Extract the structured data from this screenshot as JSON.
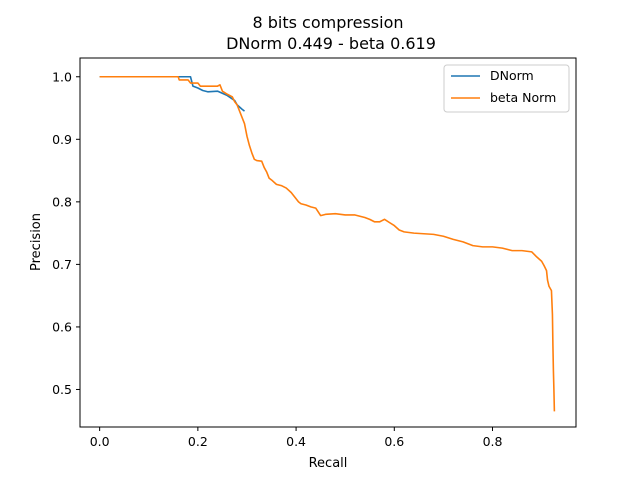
{
  "chart_data": {
    "type": "line",
    "title": "8 bits compression",
    "subtitle": "DNorm 0.449 - beta 0.619",
    "xlabel": "Recall",
    "ylabel": "Precision",
    "xlim": [
      -0.04,
      0.97
    ],
    "ylim": [
      0.44,
      1.03
    ],
    "xticks": [
      0.0,
      0.2,
      0.4,
      0.6,
      0.8
    ],
    "xtick_labels": [
      "0.0",
      "0.2",
      "0.4",
      "0.6",
      "0.8"
    ],
    "yticks": [
      0.5,
      0.6,
      0.7,
      0.8,
      0.9,
      1.0
    ],
    "ytick_labels": [
      "0.5",
      "0.6",
      "0.7",
      "0.8",
      "0.9",
      "1.0"
    ],
    "grid": false,
    "legend_position": "top-right",
    "series": [
      {
        "name": "DNorm",
        "color": "#1f77b4",
        "points": [
          [
            0.0,
            1.0
          ],
          [
            0.185,
            1.0
          ],
          [
            0.19,
            0.985
          ],
          [
            0.2,
            0.982
          ],
          [
            0.21,
            0.978
          ],
          [
            0.22,
            0.976
          ],
          [
            0.24,
            0.977
          ],
          [
            0.26,
            0.97
          ],
          [
            0.275,
            0.962
          ],
          [
            0.28,
            0.955
          ],
          [
            0.29,
            0.948
          ],
          [
            0.295,
            0.945
          ]
        ]
      },
      {
        "name": "beta Norm",
        "color": "#ff7f0e",
        "points": [
          [
            0.0,
            1.0
          ],
          [
            0.16,
            1.0
          ],
          [
            0.162,
            0.995
          ],
          [
            0.18,
            0.995
          ],
          [
            0.185,
            0.99
          ],
          [
            0.2,
            0.99
          ],
          [
            0.205,
            0.985
          ],
          [
            0.24,
            0.985
          ],
          [
            0.245,
            0.987
          ],
          [
            0.25,
            0.977
          ],
          [
            0.26,
            0.972
          ],
          [
            0.27,
            0.968
          ],
          [
            0.275,
            0.96
          ],
          [
            0.28,
            0.955
          ],
          [
            0.285,
            0.945
          ],
          [
            0.29,
            0.935
          ],
          [
            0.295,
            0.925
          ],
          [
            0.3,
            0.905
          ],
          [
            0.305,
            0.89
          ],
          [
            0.31,
            0.878
          ],
          [
            0.315,
            0.868
          ],
          [
            0.32,
            0.866
          ],
          [
            0.33,
            0.865
          ],
          [
            0.335,
            0.855
          ],
          [
            0.34,
            0.848
          ],
          [
            0.345,
            0.838
          ],
          [
            0.35,
            0.835
          ],
          [
            0.36,
            0.828
          ],
          [
            0.37,
            0.826
          ],
          [
            0.38,
            0.822
          ],
          [
            0.39,
            0.815
          ],
          [
            0.4,
            0.805
          ],
          [
            0.405,
            0.8
          ],
          [
            0.41,
            0.797
          ],
          [
            0.42,
            0.795
          ],
          [
            0.43,
            0.792
          ],
          [
            0.44,
            0.79
          ],
          [
            0.45,
            0.778
          ],
          [
            0.46,
            0.78
          ],
          [
            0.48,
            0.781
          ],
          [
            0.5,
            0.779
          ],
          [
            0.52,
            0.779
          ],
          [
            0.54,
            0.775
          ],
          [
            0.55,
            0.772
          ],
          [
            0.56,
            0.768
          ],
          [
            0.57,
            0.768
          ],
          [
            0.58,
            0.772
          ],
          [
            0.59,
            0.767
          ],
          [
            0.6,
            0.762
          ],
          [
            0.61,
            0.755
          ],
          [
            0.62,
            0.752
          ],
          [
            0.64,
            0.75
          ],
          [
            0.66,
            0.749
          ],
          [
            0.68,
            0.748
          ],
          [
            0.7,
            0.745
          ],
          [
            0.72,
            0.74
          ],
          [
            0.74,
            0.736
          ],
          [
            0.76,
            0.73
          ],
          [
            0.78,
            0.728
          ],
          [
            0.8,
            0.728
          ],
          [
            0.82,
            0.726
          ],
          [
            0.84,
            0.722
          ],
          [
            0.86,
            0.722
          ],
          [
            0.87,
            0.721
          ],
          [
            0.88,
            0.72
          ],
          [
            0.885,
            0.716
          ],
          [
            0.89,
            0.712
          ],
          [
            0.9,
            0.705
          ],
          [
            0.905,
            0.698
          ],
          [
            0.91,
            0.69
          ],
          [
            0.912,
            0.675
          ],
          [
            0.915,
            0.665
          ],
          [
            0.92,
            0.658
          ],
          [
            0.922,
            0.62
          ],
          [
            0.923,
            0.57
          ],
          [
            0.924,
            0.53
          ],
          [
            0.925,
            0.5
          ],
          [
            0.926,
            0.465
          ]
        ]
      }
    ]
  }
}
